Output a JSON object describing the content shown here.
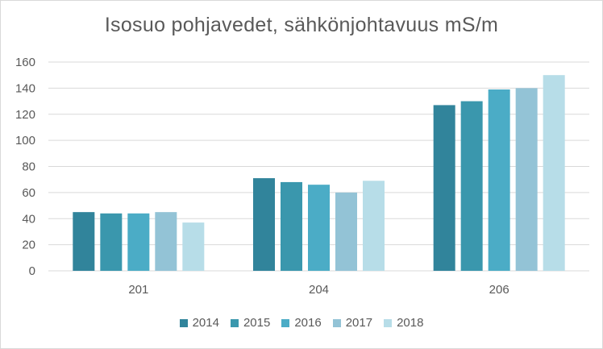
{
  "chart_data": {
    "type": "bar",
    "title": "Isosuo pohjavedet, sähkönjohtavuus mS/m",
    "categories": [
      "201",
      "204",
      "206"
    ],
    "series": [
      {
        "name": "2014",
        "color": "#31849b",
        "values": [
          45,
          71,
          127
        ]
      },
      {
        "name": "2015",
        "color": "#3a97ad",
        "values": [
          44,
          68,
          130
        ]
      },
      {
        "name": "2016",
        "color": "#4bacc6",
        "values": [
          44,
          66,
          139
        ]
      },
      {
        "name": "2017",
        "color": "#93c3d6",
        "values": [
          45,
          60,
          140
        ]
      },
      {
        "name": "2018",
        "color": "#b7dde8",
        "values": [
          37,
          69,
          150
        ]
      }
    ],
    "yticks": [
      "0",
      "20",
      "40",
      "60",
      "80",
      "100",
      "120",
      "140",
      "160"
    ],
    "ylim": [
      0,
      160
    ],
    "grid": true,
    "legend": "bottom"
  }
}
